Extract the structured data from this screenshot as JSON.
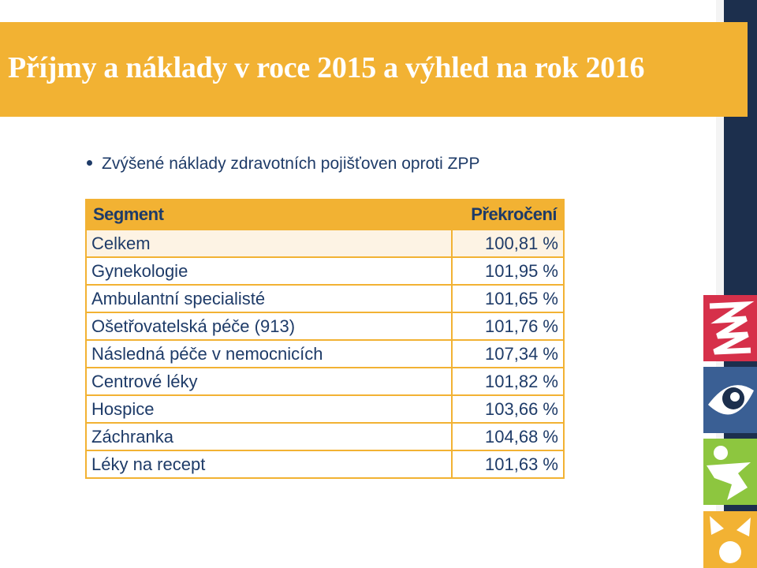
{
  "slide": {
    "title": "Příjmy a náklady v roce 2015 a výhled na rok 2016",
    "bullet": "Zvýšené náklady zdravotních pojišťoven oproti ZPP"
  },
  "table": {
    "headers": [
      "Segment",
      "Překročení"
    ],
    "rows": [
      [
        "Celkem",
        "100,81 %"
      ],
      [
        "Gynekologie",
        "101,95 %"
      ],
      [
        "Ambulantní specialisté",
        "101,65 %"
      ],
      [
        "Ošetřovatelská péče (913)",
        "101,76 %"
      ],
      [
        "Následná péče v nemocnicích",
        "107,34 %"
      ],
      [
        "Centrové léky",
        "101,82 %"
      ],
      [
        "Hospice",
        "103,66 %"
      ],
      [
        "Záchranka",
        "104,68 %"
      ],
      [
        "Léky na recept",
        "101,63 %"
      ]
    ]
  },
  "colors": {
    "accent": "#f2b233",
    "text": "#1e3b68",
    "navy_band": "#1c2f4d",
    "logo_red": "#d6304a",
    "logo_green": "#8dc63f",
    "logo_blue": "#3a5f94"
  },
  "logos": [
    "red-zigzag-icon",
    "eye-icon",
    "green-figure-icon",
    "yellow-sun-icon"
  ]
}
